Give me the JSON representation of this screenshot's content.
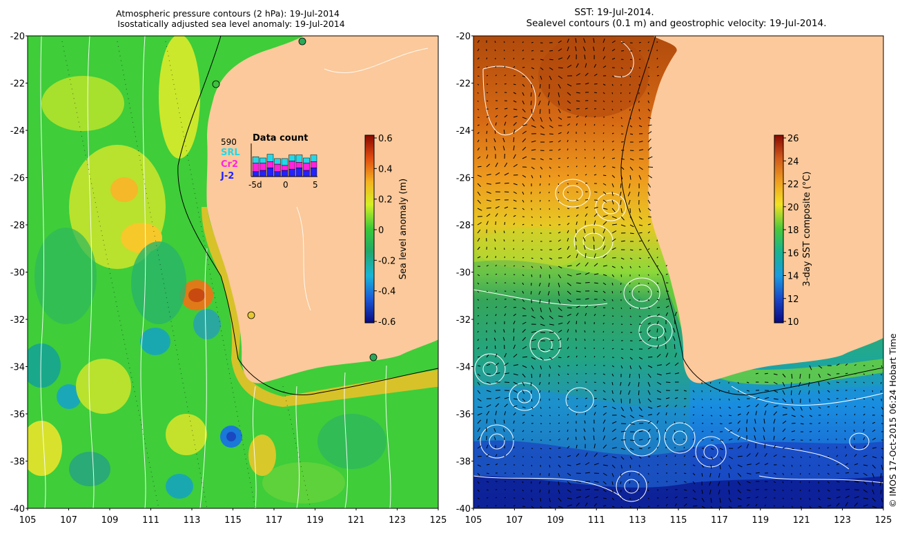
{
  "left_panel": {
    "title_line1": "Atmospheric pressure contours (2 hPa): 19-Jul-2014",
    "title_line2": "Isostatically adjusted sea level anomaly: 19-Jul-2014",
    "colorbar": {
      "label": "Sea level anomaly (m)",
      "ticks": [
        "0.6",
        "0.4",
        "0.2",
        "0",
        "-0.2",
        "-0.4",
        "-0.6"
      ],
      "range": [
        -0.6,
        0.6
      ]
    },
    "data_count": {
      "title": "Data count",
      "total": "590",
      "satellites": [
        {
          "name": "SRL",
          "color": "#22d8e8"
        },
        {
          "name": "Cr2",
          "color": "#ff22dd"
        },
        {
          "name": "J-2",
          "color": "#2222ff"
        }
      ],
      "x_ticks": [
        "-5d",
        "0",
        "5"
      ]
    }
  },
  "right_panel": {
    "title_line1": "SST: 19-Jul-2014.",
    "title_line2": "Sealevel contours (0.1 m) and geostrophic velocity: 19-Jul-2014.",
    "colorbar": {
      "label": "3-day SST composite (°C)",
      "ticks": [
        "26",
        "24",
        "22",
        "20",
        "18",
        "16",
        "14",
        "12",
        "10"
      ],
      "range": [
        10,
        26
      ]
    }
  },
  "axes": {
    "lat_ticks": [
      "-20",
      "-22",
      "-24",
      "-26",
      "-28",
      "-30",
      "-32",
      "-34",
      "-36",
      "-38",
      "-40"
    ],
    "lon_ticks": [
      "105",
      "107",
      "109",
      "111",
      "113",
      "115",
      "117",
      "119",
      "121",
      "123",
      "125"
    ],
    "lon_range": [
      105,
      125
    ],
    "lat_range": [
      -40,
      -20
    ]
  },
  "credit": "© IMOS 17-Oct-2015 06:24 Hobart Time",
  "colors": {
    "land": "#fbc99b",
    "sla_mid": "#3fcd3a",
    "sst_warm": "#d2690f",
    "sst_cold": "#0a2fb0"
  }
}
